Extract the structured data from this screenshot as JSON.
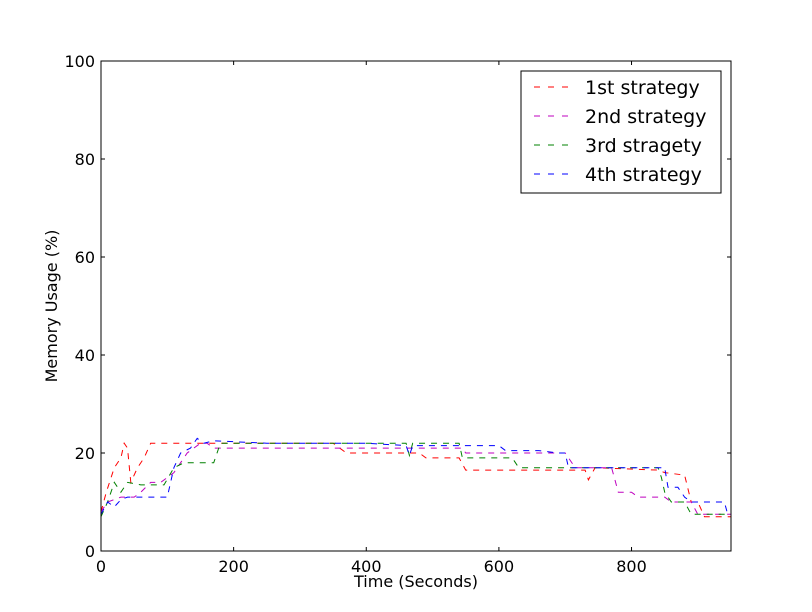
{
  "chart_data": {
    "type": "line",
    "xlabel": "Time (Seconds)",
    "ylabel": "Memory Usage (%)",
    "xlim": [
      0,
      950
    ],
    "ylim": [
      0,
      100
    ],
    "xticks": [
      0,
      200,
      400,
      600,
      800
    ],
    "yticks": [
      0,
      20,
      40,
      60,
      80,
      100
    ],
    "grid": false,
    "legend_position": "top-right",
    "line_style": "dashed",
    "series": [
      {
        "name": "1st strategy",
        "color": "#ff0000",
        "points": [
          [
            0,
            8
          ],
          [
            8,
            12
          ],
          [
            20,
            17
          ],
          [
            30,
            19
          ],
          [
            35,
            22
          ],
          [
            40,
            21
          ],
          [
            45,
            14
          ],
          [
            55,
            17
          ],
          [
            65,
            19
          ],
          [
            75,
            22
          ],
          [
            100,
            22
          ],
          [
            150,
            22
          ],
          [
            200,
            22
          ],
          [
            350,
            22
          ],
          [
            370,
            20
          ],
          [
            480,
            20
          ],
          [
            490,
            19
          ],
          [
            540,
            19
          ],
          [
            550,
            16.5
          ],
          [
            700,
            16.5
          ],
          [
            730,
            16.5
          ],
          [
            735,
            14.5
          ],
          [
            745,
            17
          ],
          [
            840,
            16.5
          ],
          [
            850,
            16
          ],
          [
            880,
            15.5
          ],
          [
            890,
            10
          ],
          [
            900,
            10
          ],
          [
            910,
            7
          ],
          [
            950,
            7
          ]
        ]
      },
      {
        "name": "2nd strategy",
        "color": "#bf00bf",
        "points": [
          [
            0,
            8
          ],
          [
            10,
            10
          ],
          [
            30,
            11
          ],
          [
            50,
            11
          ],
          [
            60,
            12
          ],
          [
            75,
            14
          ],
          [
            90,
            14
          ],
          [
            110,
            16
          ],
          [
            130,
            20
          ],
          [
            150,
            22
          ],
          [
            160,
            22
          ],
          [
            170,
            21
          ],
          [
            250,
            21
          ],
          [
            300,
            21
          ],
          [
            390,
            21
          ],
          [
            480,
            21
          ],
          [
            545,
            21
          ],
          [
            550,
            20
          ],
          [
            650,
            20
          ],
          [
            700,
            20
          ],
          [
            715,
            17
          ],
          [
            770,
            17
          ],
          [
            780,
            12
          ],
          [
            800,
            12
          ],
          [
            810,
            11
          ],
          [
            850,
            11
          ],
          [
            860,
            10
          ],
          [
            890,
            10
          ],
          [
            900,
            7.5
          ],
          [
            950,
            7.5
          ]
        ]
      },
      {
        "name": "3rd stragety",
        "color": "#008000",
        "points": [
          [
            0,
            7
          ],
          [
            10,
            10
          ],
          [
            20,
            14
          ],
          [
            30,
            12
          ],
          [
            40,
            14
          ],
          [
            60,
            13.5
          ],
          [
            80,
            13.5
          ],
          [
            95,
            13.5
          ],
          [
            110,
            17
          ],
          [
            125,
            18
          ],
          [
            170,
            18
          ],
          [
            180,
            22
          ],
          [
            300,
            22
          ],
          [
            400,
            22
          ],
          [
            460,
            22
          ],
          [
            465,
            19.5
          ],
          [
            470,
            22
          ],
          [
            540,
            22
          ],
          [
            545,
            19
          ],
          [
            620,
            19
          ],
          [
            630,
            17
          ],
          [
            700,
            17
          ],
          [
            840,
            17
          ],
          [
            845,
            15
          ],
          [
            850,
            12
          ],
          [
            860,
            10
          ],
          [
            880,
            10
          ],
          [
            890,
            7.5
          ],
          [
            950,
            7.5
          ]
        ]
      },
      {
        "name": "4th strategy",
        "color": "#0000ff",
        "points": [
          [
            0,
            7.5
          ],
          [
            10,
            10
          ],
          [
            20,
            9
          ],
          [
            30,
            10.5
          ],
          [
            40,
            11
          ],
          [
            60,
            11
          ],
          [
            90,
            11
          ],
          [
            100,
            11
          ],
          [
            110,
            17
          ],
          [
            120,
            20
          ],
          [
            135,
            21
          ],
          [
            145,
            23
          ],
          [
            155,
            22
          ],
          [
            170,
            22.5
          ],
          [
            250,
            22
          ],
          [
            300,
            22
          ],
          [
            350,
            22
          ],
          [
            400,
            22
          ],
          [
            460,
            21.5
          ],
          [
            465,
            19.5
          ],
          [
            470,
            21.5
          ],
          [
            500,
            21.5
          ],
          [
            540,
            21.5
          ],
          [
            600,
            21.5
          ],
          [
            610,
            20.5
          ],
          [
            660,
            20.5
          ],
          [
            690,
            20
          ],
          [
            700,
            20
          ],
          [
            705,
            17
          ],
          [
            720,
            17
          ],
          [
            800,
            17
          ],
          [
            840,
            17
          ],
          [
            850,
            17
          ],
          [
            855,
            13
          ],
          [
            870,
            13
          ],
          [
            880,
            11
          ],
          [
            890,
            10
          ],
          [
            900,
            10
          ],
          [
            920,
            10
          ],
          [
            940,
            10
          ],
          [
            945,
            7.5
          ],
          [
            950,
            7.5
          ]
        ]
      }
    ]
  }
}
